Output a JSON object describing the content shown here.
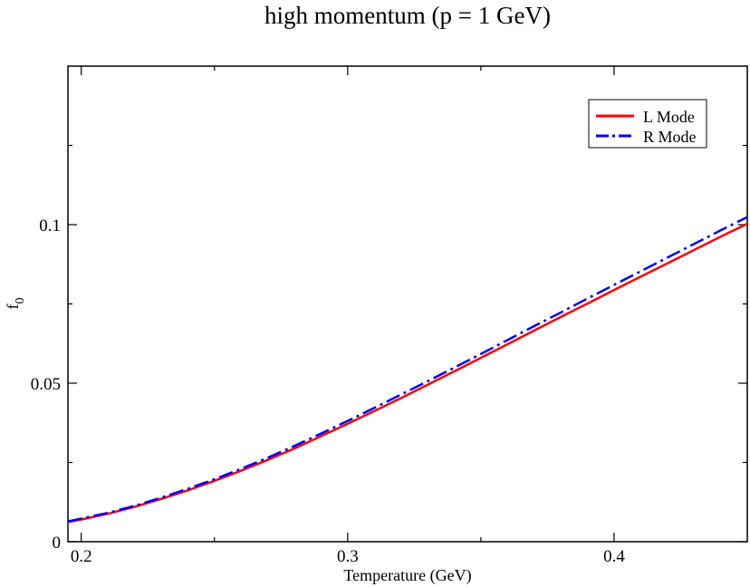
{
  "chart_data": {
    "type": "line",
    "title": "high momentum (p = 1 GeV)",
    "xlabel": "Temperature (GeV)",
    "ylabel": "f",
    "ylabel_sub": "0",
    "xlim": [
      0.195,
      0.45
    ],
    "ylim": [
      0,
      0.15
    ],
    "x_ticks": [
      {
        "value": 0.2,
        "label": "0.2"
      },
      {
        "value": 0.3,
        "label": "0.3"
      },
      {
        "value": 0.4,
        "label": "0.4"
      }
    ],
    "y_ticks": [
      {
        "value": 0,
        "label": "0"
      },
      {
        "value": 0.05,
        "label": "0.05"
      },
      {
        "value": 0.1,
        "label": "0.1"
      }
    ],
    "x_minor_ticks": [
      0.25,
      0.35
    ],
    "y_minor_ticks": [
      0.025,
      0.075,
      0.125
    ],
    "grid": false,
    "legend_position": "top-right",
    "series": [
      {
        "name": "L Mode",
        "color": "#ff0000",
        "style": "solid",
        "x": [
          0.195,
          0.2,
          0.21,
          0.22,
          0.23,
          0.24,
          0.25,
          0.26,
          0.27,
          0.28,
          0.29,
          0.3,
          0.31,
          0.32,
          0.33,
          0.34,
          0.35,
          0.36,
          0.37,
          0.38,
          0.39,
          0.4,
          0.41,
          0.42,
          0.43,
          0.44,
          0.45
        ],
        "y": [
          0.0062,
          0.007,
          0.0088,
          0.011,
          0.0135,
          0.0162,
          0.0192,
          0.0224,
          0.0258,
          0.0294,
          0.0333,
          0.0372,
          0.0412,
          0.0453,
          0.0495,
          0.0537,
          0.058,
          0.0623,
          0.0666,
          0.0709,
          0.0751,
          0.0794,
          0.0836,
          0.0878,
          0.092,
          0.0962,
          0.1003
        ]
      },
      {
        "name": "R Mode",
        "color": "#0000ff",
        "style": "dash-dot",
        "x": [
          0.195,
          0.2,
          0.21,
          0.22,
          0.23,
          0.24,
          0.25,
          0.26,
          0.27,
          0.28,
          0.29,
          0.3,
          0.31,
          0.32,
          0.33,
          0.34,
          0.35,
          0.36,
          0.37,
          0.38,
          0.39,
          0.4,
          0.41,
          0.42,
          0.43,
          0.44,
          0.45
        ],
        "y": [
          0.0064,
          0.0073,
          0.0091,
          0.0113,
          0.0139,
          0.0167,
          0.0197,
          0.023,
          0.0265,
          0.0302,
          0.0341,
          0.0381,
          0.0422,
          0.0464,
          0.0506,
          0.0549,
          0.0592,
          0.0636,
          0.068,
          0.0723,
          0.0767,
          0.081,
          0.0853,
          0.0896,
          0.0939,
          0.0982,
          0.1024
        ]
      }
    ]
  }
}
